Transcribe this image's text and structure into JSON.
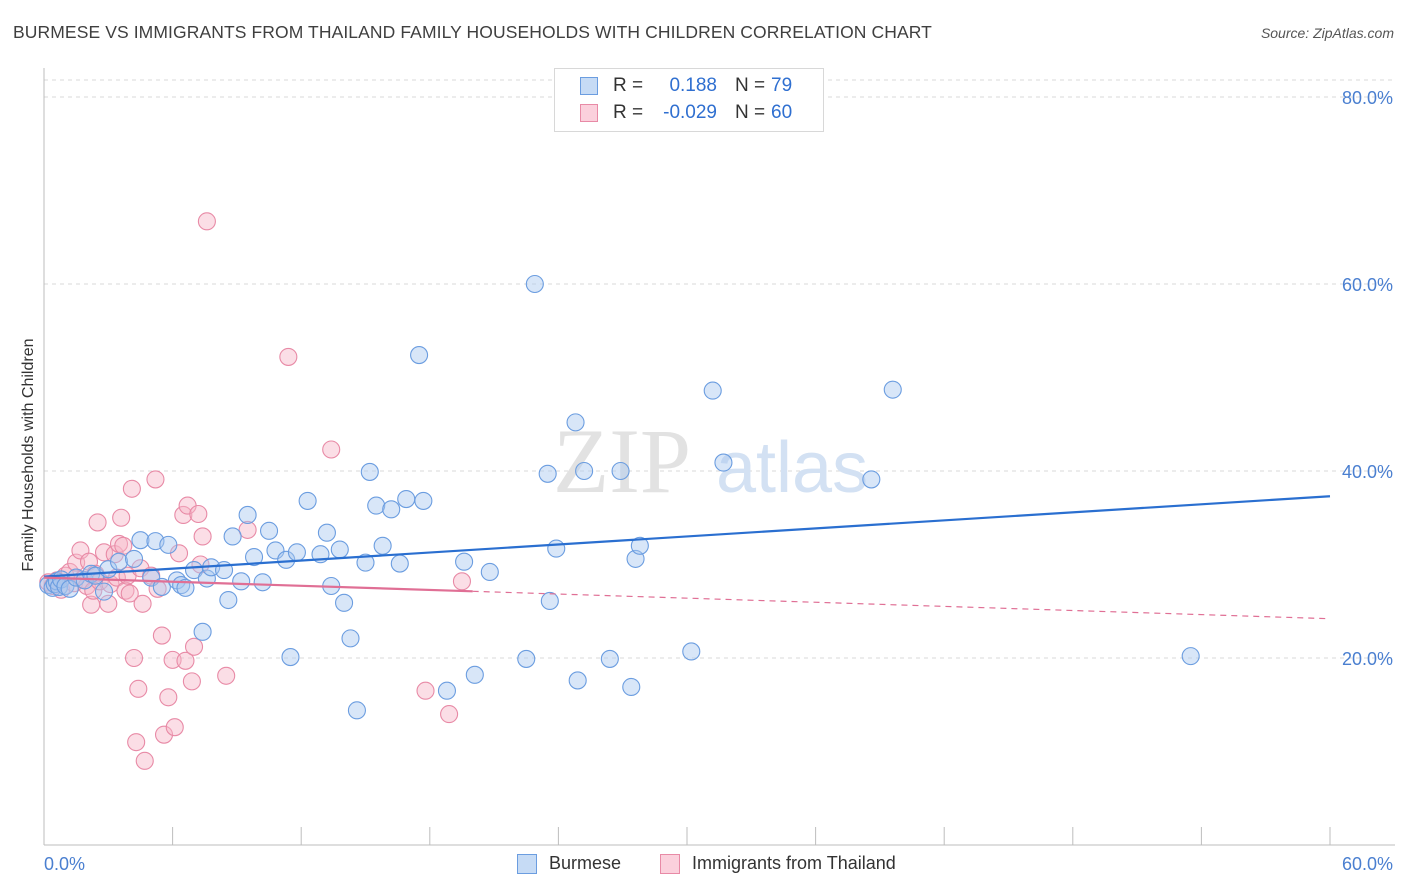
{
  "title": "BURMESE VS IMMIGRANTS FROM THAILAND FAMILY HOUSEHOLDS WITH CHILDREN CORRELATION CHART",
  "source": "Source: ZipAtlas.com",
  "watermark": {
    "zip": "ZIP",
    "atlas": "atlas"
  },
  "legend_top": {
    "rows": [
      {
        "r_label": "R =",
        "r_value": "0.188",
        "n_label": "N =",
        "n_value": "79"
      },
      {
        "r_label": "R =",
        "r_value": "-0.029",
        "n_label": "N =",
        "n_value": "60"
      }
    ]
  },
  "colors": {
    "blue_fill": "#a8c8f0",
    "blue_stroke": "#6b9de0",
    "blue_line": "#2a6fd0",
    "pink_fill": "#f7b6c8",
    "pink_stroke": "#e88aa6",
    "pink_line": "#e06f95",
    "grid": "#d9d9d9",
    "axis_text": "#4a7fd0"
  },
  "chart_data": {
    "type": "scatter",
    "title": "BURMESE VS IMMIGRANTS FROM THAILAND FAMILY HOUSEHOLDS WITH CHILDREN CORRELATION CHART",
    "xlabel": "",
    "ylabel": "Family Households with Children",
    "xlim": [
      0,
      60
    ],
    "ylim": [
      0,
      82
    ],
    "x_tick_labels": [
      {
        "value": 0,
        "label": "0.0%"
      },
      {
        "value": 60,
        "label": "60.0%"
      }
    ],
    "y_tick_labels": [
      {
        "value": 20,
        "label": "20.0%"
      },
      {
        "value": 40,
        "label": "40.0%"
      },
      {
        "value": 60,
        "label": "60.0%"
      },
      {
        "value": 80,
        "label": "80.0%"
      }
    ],
    "grid": true,
    "legend_position": "bottom",
    "series": [
      {
        "name": "Burmese",
        "r": 0.188,
        "n": 79,
        "trend": {
          "x": [
            0,
            60
          ],
          "y": [
            28.7,
            37.3
          ],
          "style": "solid"
        },
        "points": [
          [
            0.2,
            27.8
          ],
          [
            0.4,
            27.5
          ],
          [
            0.5,
            27.9
          ],
          [
            0.6,
            28.2
          ],
          [
            0.7,
            27.6
          ],
          [
            0.8,
            28.4
          ],
          [
            1.0,
            27.7
          ],
          [
            1.2,
            27.4
          ],
          [
            1.5,
            28.6
          ],
          [
            1.9,
            28.3
          ],
          [
            2.2,
            29.0
          ],
          [
            2.4,
            28.8
          ],
          [
            2.8,
            27.1
          ],
          [
            3.0,
            29.5
          ],
          [
            3.5,
            30.3
          ],
          [
            4.2,
            30.6
          ],
          [
            4.5,
            32.6
          ],
          [
            5.0,
            28.6
          ],
          [
            5.2,
            32.5
          ],
          [
            5.5,
            27.6
          ],
          [
            5.8,
            32.1
          ],
          [
            6.2,
            28.3
          ],
          [
            6.4,
            27.8
          ],
          [
            6.6,
            27.5
          ],
          [
            7.0,
            29.4
          ],
          [
            7.4,
            22.8
          ],
          [
            7.6,
            28.5
          ],
          [
            7.8,
            29.7
          ],
          [
            8.4,
            29.4
          ],
          [
            8.6,
            26.2
          ],
          [
            8.8,
            33.0
          ],
          [
            9.2,
            28.2
          ],
          [
            9.5,
            35.3
          ],
          [
            9.8,
            30.8
          ],
          [
            10.2,
            28.1
          ],
          [
            10.5,
            33.6
          ],
          [
            10.8,
            31.5
          ],
          [
            11.3,
            30.5
          ],
          [
            11.5,
            20.1
          ],
          [
            11.8,
            31.3
          ],
          [
            12.3,
            36.8
          ],
          [
            12.9,
            31.1
          ],
          [
            13.2,
            33.4
          ],
          [
            13.4,
            27.7
          ],
          [
            13.8,
            31.6
          ],
          [
            14.0,
            25.9
          ],
          [
            14.3,
            22.1
          ],
          [
            14.6,
            14.4
          ],
          [
            15.0,
            30.2
          ],
          [
            15.2,
            39.9
          ],
          [
            15.5,
            36.3
          ],
          [
            15.8,
            32.0
          ],
          [
            16.2,
            35.9
          ],
          [
            16.6,
            30.1
          ],
          [
            16.9,
            37.0
          ],
          [
            17.5,
            52.4
          ],
          [
            17.7,
            36.8
          ],
          [
            18.8,
            16.5
          ],
          [
            19.6,
            30.3
          ],
          [
            20.1,
            18.2
          ],
          [
            20.8,
            29.2
          ],
          [
            22.5,
            19.9
          ],
          [
            22.9,
            60.0
          ],
          [
            23.5,
            39.7
          ],
          [
            23.6,
            26.1
          ],
          [
            23.9,
            31.7
          ],
          [
            24.8,
            45.2
          ],
          [
            24.9,
            17.6
          ],
          [
            25.2,
            40.0
          ],
          [
            26.4,
            19.9
          ],
          [
            26.9,
            40.0
          ],
          [
            27.4,
            16.9
          ],
          [
            27.6,
            30.6
          ],
          [
            27.8,
            32.0
          ],
          [
            30.2,
            20.7
          ],
          [
            31.2,
            48.6
          ],
          [
            31.7,
            40.9
          ],
          [
            38.6,
            39.1
          ],
          [
            39.6,
            48.7
          ],
          [
            53.5,
            20.2
          ]
        ]
      },
      {
        "name": "Immigrants from Thailand",
        "r": -0.029,
        "n": 60,
        "trend": {
          "x": [
            0,
            60
          ],
          "y": [
            28.6,
            24.2
          ],
          "solid_until": 20,
          "style": "solid-then-dashed"
        },
        "points": [
          [
            0.2,
            28.1
          ],
          [
            0.4,
            27.7
          ],
          [
            0.6,
            28.3
          ],
          [
            0.8,
            27.3
          ],
          [
            1.0,
            28.8
          ],
          [
            1.2,
            29.2
          ],
          [
            1.4,
            28.0
          ],
          [
            1.5,
            30.2
          ],
          [
            1.7,
            31.5
          ],
          [
            1.8,
            28.4
          ],
          [
            2.0,
            27.7
          ],
          [
            2.1,
            30.3
          ],
          [
            2.2,
            25.7
          ],
          [
            2.3,
            27.2
          ],
          [
            2.4,
            29.0
          ],
          [
            2.5,
            34.5
          ],
          [
            2.6,
            28.2
          ],
          [
            2.8,
            31.3
          ],
          [
            3.0,
            25.8
          ],
          [
            3.1,
            27.9
          ],
          [
            3.3,
            31.1
          ],
          [
            3.4,
            28.6
          ],
          [
            3.5,
            32.2
          ],
          [
            3.6,
            35.0
          ],
          [
            3.7,
            32.0
          ],
          [
            3.8,
            27.2
          ],
          [
            3.9,
            28.8
          ],
          [
            4.0,
            26.9
          ],
          [
            4.1,
            38.1
          ],
          [
            4.2,
            20.0
          ],
          [
            4.3,
            11.0
          ],
          [
            4.4,
            16.7
          ],
          [
            4.5,
            29.6
          ],
          [
            4.6,
            25.8
          ],
          [
            4.7,
            9.0
          ],
          [
            5.0,
            28.8
          ],
          [
            5.2,
            39.1
          ],
          [
            5.3,
            27.4
          ],
          [
            5.5,
            22.4
          ],
          [
            5.6,
            11.8
          ],
          [
            5.8,
            15.8
          ],
          [
            6.0,
            19.8
          ],
          [
            6.1,
            12.6
          ],
          [
            6.3,
            31.2
          ],
          [
            6.5,
            35.3
          ],
          [
            6.6,
            19.7
          ],
          [
            6.7,
            36.3
          ],
          [
            6.9,
            17.5
          ],
          [
            7.0,
            21.2
          ],
          [
            7.2,
            35.4
          ],
          [
            7.3,
            30.0
          ],
          [
            7.4,
            33.0
          ],
          [
            7.6,
            66.7
          ],
          [
            8.5,
            18.1
          ],
          [
            9.5,
            33.7
          ],
          [
            11.4,
            52.2
          ],
          [
            13.4,
            42.3
          ],
          [
            17.8,
            16.5
          ],
          [
            18.9,
            14.0
          ],
          [
            19.5,
            28.2
          ]
        ]
      }
    ]
  },
  "legend_bottom": [
    {
      "label": "Burmese"
    },
    {
      "label": "Immigrants from Thailand"
    }
  ]
}
